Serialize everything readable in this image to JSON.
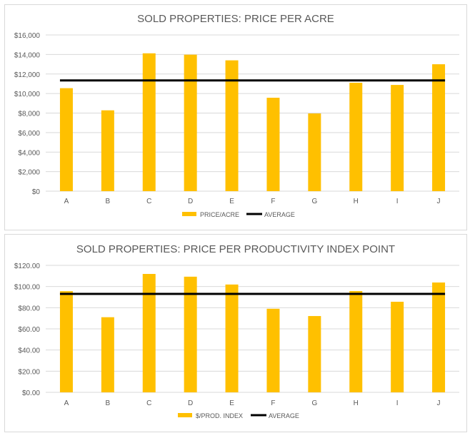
{
  "chart_data": [
    {
      "type": "bar",
      "title": "SOLD PROPERTIES: PRICE PER ACRE",
      "categories": [
        "A",
        "B",
        "C",
        "D",
        "E",
        "F",
        "G",
        "H",
        "I",
        "J"
      ],
      "series": [
        {
          "name": "PRICE/ACRE",
          "type": "bar",
          "values": [
            10550,
            8280,
            14120,
            13980,
            13400,
            9570,
            7960,
            11100,
            10880,
            13000
          ]
        },
        {
          "name": "AVERAGE",
          "type": "line",
          "values": [
            11340,
            11340,
            11340,
            11340,
            11340,
            11340,
            11340,
            11340,
            11340,
            11340
          ]
        }
      ],
      "ylim": [
        0,
        16000
      ],
      "yticks": [
        0,
        2000,
        4000,
        6000,
        8000,
        10000,
        12000,
        14000,
        16000
      ],
      "ytick_labels": [
        "$0",
        "$2,000",
        "$4,000",
        "$6,000",
        "$8,000",
        "$10,000",
        "$12,000",
        "$14,000",
        "$16,000"
      ],
      "grid": true,
      "legend": "bottom",
      "colors": {
        "bar": "#ffc000",
        "line": "#000000"
      }
    },
    {
      "type": "bar",
      "title": "SOLD PROPERTIES: PRICE PER PRODUCTIVITY INDEX  POINT",
      "categories": [
        "A",
        "B",
        "C",
        "D",
        "E",
        "F",
        "G",
        "H",
        "I",
        "J"
      ],
      "series": [
        {
          "name": "$/PROD. INDEX",
          "type": "bar",
          "values": [
            95.6,
            71.0,
            111.9,
            109.3,
            101.9,
            79.0,
            72.1,
            95.7,
            85.6,
            103.8
          ]
        },
        {
          "name": "AVERAGE",
          "type": "line",
          "values": [
            93,
            93,
            93,
            93,
            93,
            93,
            93,
            93,
            93,
            93
          ]
        }
      ],
      "ylim": [
        0,
        120
      ],
      "yticks": [
        0,
        20,
        40,
        60,
        80,
        100,
        120
      ],
      "ytick_labels": [
        "$0.00",
        "$20.00",
        "$40.00",
        "$60.00",
        "$80.00",
        "$100.00",
        "$120.00"
      ],
      "grid": true,
      "legend": "bottom",
      "colors": {
        "bar": "#ffc000",
        "line": "#000000"
      }
    }
  ]
}
